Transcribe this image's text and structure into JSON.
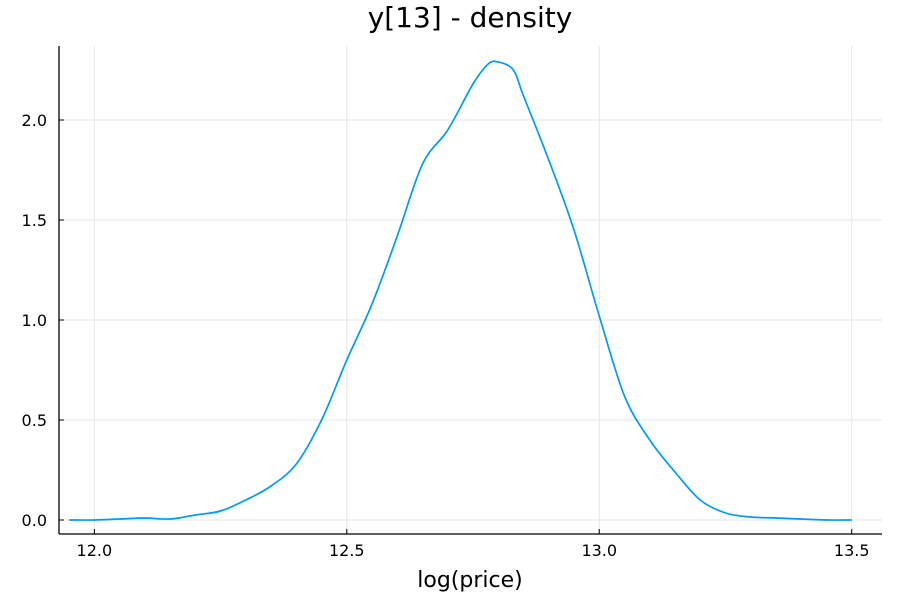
{
  "chart_data": {
    "type": "line",
    "title": "y[13] - density",
    "xlabel": "log(price)",
    "ylabel": "",
    "xlim": [
      11.93,
      13.56
    ],
    "ylim": [
      -0.07,
      2.37
    ],
    "xticks": [
      12.0,
      12.5,
      13.0,
      13.5
    ],
    "xtick_labels": [
      "12.0",
      "12.5",
      "13.0",
      "13.5"
    ],
    "yticks": [
      0.0,
      0.5,
      1.0,
      1.5,
      2.0
    ],
    "ytick_labels": [
      "0.0",
      "0.5",
      "1.0",
      "1.5",
      "2.0"
    ],
    "grid": true,
    "legend": "none",
    "series": [
      {
        "color": "#009af9",
        "x": [
          11.95,
          12.0,
          12.05,
          12.1,
          12.15,
          12.2,
          12.25,
          12.3,
          12.35,
          12.4,
          12.45,
          12.5,
          12.55,
          12.6,
          12.65,
          12.7,
          12.75,
          12.78,
          12.8,
          12.83,
          12.85,
          12.9,
          12.95,
          13.0,
          13.05,
          13.1,
          13.15,
          13.2,
          13.25,
          13.3,
          13.35,
          13.4,
          13.45,
          13.5
        ],
        "y": [
          0.0,
          0.0,
          0.005,
          0.01,
          0.005,
          0.025,
          0.045,
          0.1,
          0.17,
          0.28,
          0.5,
          0.8,
          1.08,
          1.42,
          1.78,
          1.95,
          2.18,
          2.28,
          2.29,
          2.25,
          2.12,
          1.8,
          1.45,
          1.02,
          0.62,
          0.4,
          0.24,
          0.1,
          0.035,
          0.015,
          0.01,
          0.005,
          0.0,
          0.0
        ]
      }
    ]
  }
}
